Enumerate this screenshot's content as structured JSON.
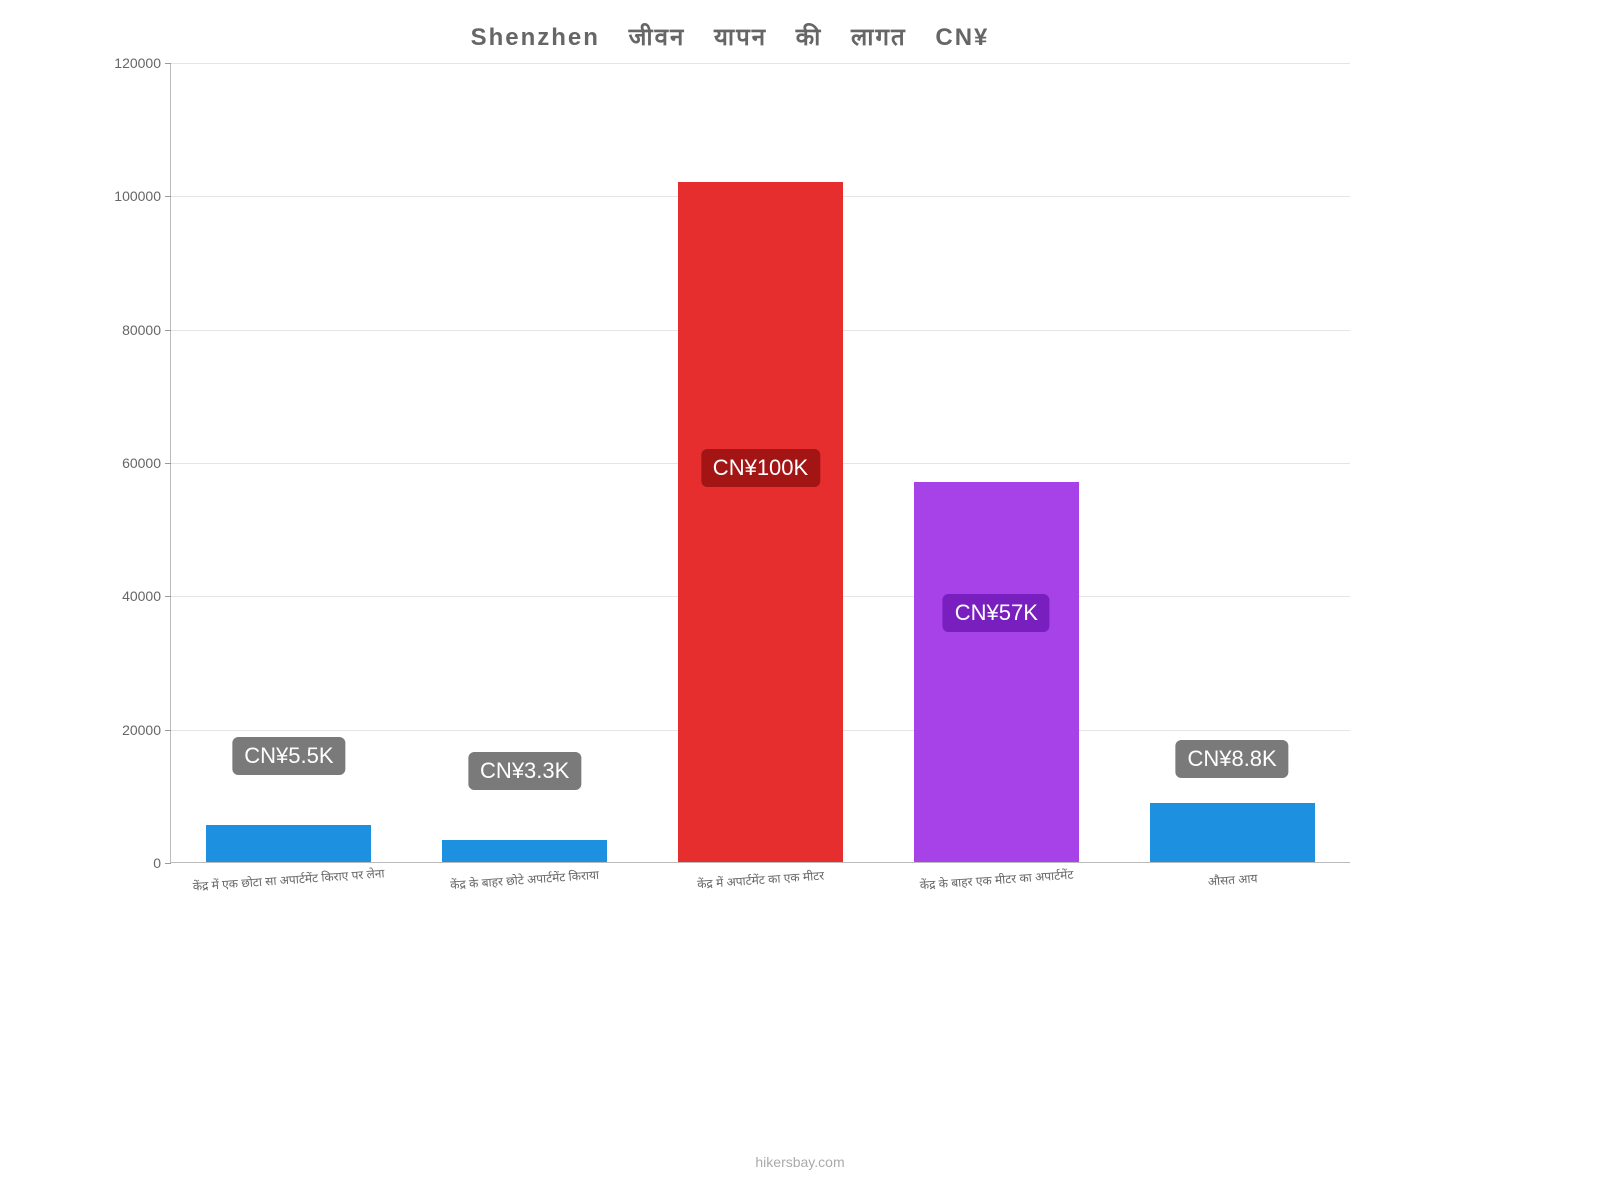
{
  "chart": {
    "type": "bar",
    "title": "Shenzhen जीवन यापन की लागत CN¥",
    "title_color": "#666666",
    "title_fontsize": 24,
    "background_color": "#ffffff",
    "grid_color": "#e5e5e5",
    "axis_color": "#bbbbbb",
    "ylim": [
      0,
      120000
    ],
    "ytick_step": 20000,
    "yticks": [
      {
        "value": 0,
        "label": "0"
      },
      {
        "value": 20000,
        "label": "20000"
      },
      {
        "value": 40000,
        "label": "40000"
      },
      {
        "value": 60000,
        "label": "60000"
      },
      {
        "value": 80000,
        "label": "80000"
      },
      {
        "value": 100000,
        "label": "100000"
      },
      {
        "value": 120000,
        "label": "120000"
      }
    ],
    "xlabel_fontsize": 12,
    "xlabel_color": "#666666",
    "bar_width_pct": 14,
    "bars": [
      {
        "category": "केंद्र में एक छोटा सा अपार्टमेंट किराए पर लेना",
        "value": 5500,
        "color": "#1e90e0",
        "badge_label": "CN¥5.5K",
        "badge_bg": "#7a7a7a",
        "badge_color": "#ffffff",
        "badge_offset_y": 50
      },
      {
        "category": "केंद्र के बाहर छोटे अपार्टमेंट किराया",
        "value": 3300,
        "color": "#1e90e0",
        "badge_label": "CN¥3.3K",
        "badge_bg": "#7a7a7a",
        "badge_color": "#ffffff",
        "badge_offset_y": 50
      },
      {
        "category": "केंद्र में अपार्टमेंट का एक मीटर",
        "value": 102000,
        "color": "#e62e2e",
        "badge_label": "CN¥100K",
        "badge_bg": "#a31515",
        "badge_color": "#ffffff",
        "badge_offset_y": -305
      },
      {
        "category": "केंद्र के बाहर एक मीटर का अपार्टमेंट",
        "value": 57000,
        "color": "#a642e8",
        "badge_label": "CN¥57K",
        "badge_bg": "#7a1fbf",
        "badge_color": "#ffffff",
        "badge_offset_y": -150
      },
      {
        "category": "औसत आय",
        "value": 8800,
        "color": "#1e90e0",
        "badge_label": "CN¥8.8K",
        "badge_bg": "#7a7a7a",
        "badge_color": "#ffffff",
        "badge_offset_y": 25
      }
    ],
    "footer": "hikersbay.com",
    "footer_color": "#aaaaaa",
    "footer_fontsize": 14
  }
}
